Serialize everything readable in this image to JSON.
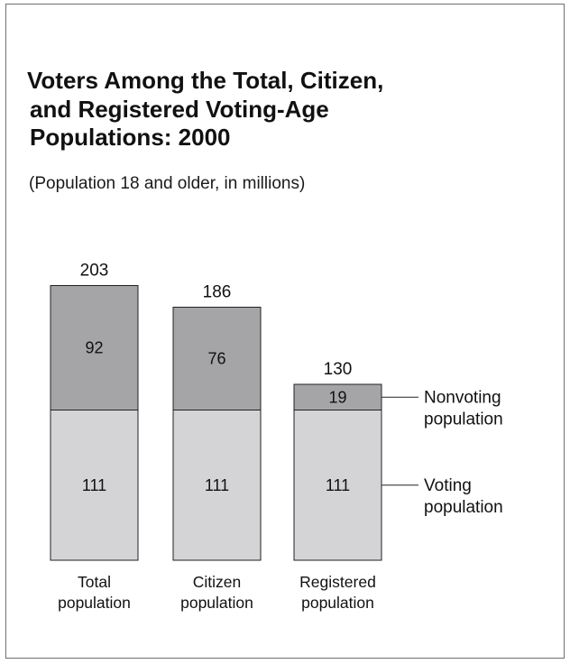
{
  "chart_data": {
    "type": "bar",
    "stacked": true,
    "title_lines": [
      "Voters Among the Total, Citizen,",
      "and Registered Voting-Age",
      "Populations: 2000"
    ],
    "subtitle": "(Population 18 and older, in millions)",
    "categories": [
      [
        "Total",
        "population"
      ],
      [
        "Citizen",
        "population"
      ],
      [
        "Registered",
        "population"
      ]
    ],
    "totals": [
      203,
      186,
      130
    ],
    "series": [
      {
        "name_lines": [
          "Voting",
          "population"
        ],
        "values": [
          111,
          111,
          111
        ],
        "color": "#d4d4d6"
      },
      {
        "name_lines": [
          "Nonvoting",
          "population"
        ],
        "values": [
          92,
          76,
          19
        ],
        "color": "#a5a5a8"
      }
    ],
    "legend": "right"
  }
}
